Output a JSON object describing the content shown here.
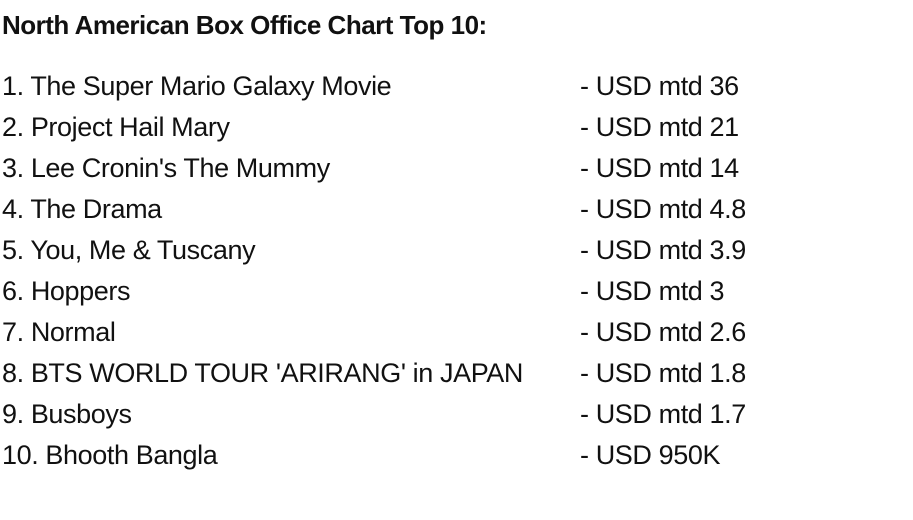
{
  "title": "North American Box Office Chart Top 10:",
  "entries": [
    {
      "name": "1. The Super Mario Galaxy Movie",
      "value": "- USD mtd 36"
    },
    {
      "name": "2. Project Hail Mary",
      "value": "- USD mtd 21"
    },
    {
      "name": "3. Lee Cronin's The Mummy",
      "value": "- USD mtd 14"
    },
    {
      "name": "4. The Drama",
      "value": "- USD mtd 4.8"
    },
    {
      "name": "5. You, Me & Tuscany",
      "value": "- USD mtd 3.9"
    },
    {
      "name": "6. Hoppers",
      "value": "- USD mtd 3"
    },
    {
      "name": "7. Normal",
      "value": "- USD mtd 2.6"
    },
    {
      "name": "8. BTS WORLD TOUR 'ARIRANG' in JAPAN",
      "value": "- USD mtd 1.8"
    },
    {
      "name": "9. Busboys",
      "value": "- USD mtd 1.7"
    },
    {
      "name": "10. Bhooth Bangla",
      "value": "- USD 950K"
    }
  ]
}
